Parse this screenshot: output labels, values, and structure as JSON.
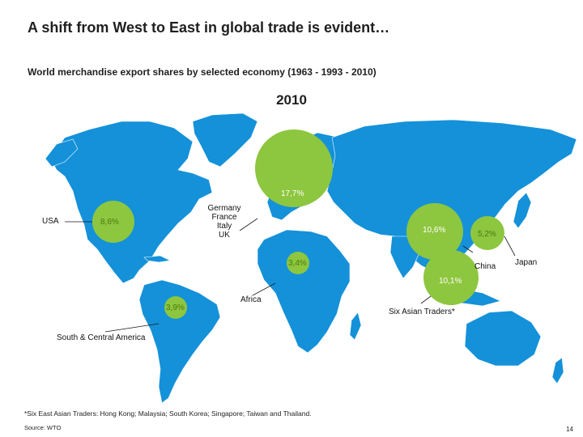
{
  "slide": {
    "title": "A shift from West to East in global trade is evident…",
    "subtitle": "World merchandise export shares by selected economy (1963 - 1993 - 2010)",
    "year": "2010",
    "footnote": "*Six East Asian Traders: Hong Kong; Malaysia; South Korea; Singapore; Taiwan and Thailand.",
    "source": "Source: WTO",
    "page_number": "14"
  },
  "colors": {
    "land": "#1491d9",
    "bubble": "#8dc63f",
    "bubble_text": "#4a7a10",
    "background": "#ffffff"
  },
  "regions": [
    {
      "key": "usa",
      "label": "USA",
      "value": "8,6%"
    },
    {
      "key": "europe",
      "label": "Germany\nFrance\nItaly\nUK",
      "value": "17,7%"
    },
    {
      "key": "china",
      "label": "China",
      "value": "10,6%"
    },
    {
      "key": "japan",
      "label": "Japan",
      "value": "5,2%"
    },
    {
      "key": "africa",
      "label": "Africa",
      "value": "3,4%"
    },
    {
      "key": "six_asian",
      "label": "Six Asian Traders*",
      "value": "10,1%"
    },
    {
      "key": "south_america",
      "label": "South & Central America",
      "value": "3,9%"
    }
  ]
}
